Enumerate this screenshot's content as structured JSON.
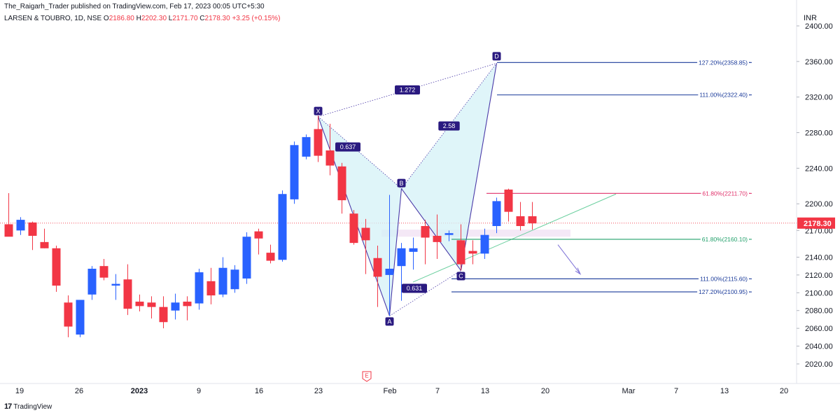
{
  "header": {
    "publisher": "The_Raigarh_Trader published on TradingView.com, Feb 17, 2023 00:05 UTC+5:30",
    "symbol": "LARSEN & TOUBRO, 1D, NSE",
    "open_label": "O",
    "open": "2186.80",
    "high_label": "H",
    "high": "2202.30",
    "low_label": "L",
    "low": "2171.70",
    "close_label": "C",
    "close": "2178.30",
    "change": "+3.25 (+0.15%)",
    "currency": "INR"
  },
  "footer": {
    "brand": "TradingView",
    "logo_icon": "tradingview-logo-icon"
  },
  "colors": {
    "up": "#2962ff",
    "down": "#f23645",
    "pattern_fill": "#d4f2f7",
    "pattern_line": "#4a3aa8",
    "point_badge": "#2a1a80",
    "fib_blue": "#1a3a9a",
    "fib_red": "#e0306a",
    "fib_green": "#22a06b",
    "price_tag": "#f23645"
  },
  "chart_data": {
    "type": "candlestick",
    "symbol": "LARSEN & TOUBRO",
    "timeframe": "1D",
    "exchange": "NSE",
    "currency": "INR",
    "ylim": [
      2010,
      2400
    ],
    "y_ticks": [
      "2400.00",
      "2360.00",
      "2320.00",
      "2280.00",
      "2240.00",
      "2200.00",
      "2170.00",
      "2140.00",
      "2120.00",
      "2100.00",
      "2080.00",
      "2060.00",
      "2040.00",
      "2020.00"
    ],
    "x_ticks": [
      "19",
      "26",
      "2023",
      "9",
      "16",
      "23",
      "Feb",
      "7",
      "13",
      "20",
      "Mar",
      "7",
      "13",
      "20"
    ],
    "last_price": "2178.30",
    "candles": [
      {
        "d": "2022-12-16",
        "o": 2177,
        "h": 2212,
        "l": 2164,
        "c": 2163
      },
      {
        "d": "2022-12-19",
        "o": 2170,
        "h": 2185,
        "l": 2165,
        "c": 2182
      },
      {
        "d": "2022-12-20",
        "o": 2179,
        "h": 2180,
        "l": 2148,
        "c": 2164
      },
      {
        "d": "2022-12-21",
        "o": 2157,
        "h": 2172,
        "l": 2150,
        "c": 2150
      },
      {
        "d": "2022-12-22",
        "o": 2150,
        "h": 2153,
        "l": 2101,
        "c": 2108
      },
      {
        "d": "2022-12-23",
        "o": 2089,
        "h": 2097,
        "l": 2050,
        "c": 2062
      },
      {
        "d": "2022-12-26",
        "o": 2053,
        "h": 2092,
        "l": 2050,
        "c": 2092
      },
      {
        "d": "2022-12-27",
        "o": 2098,
        "h": 2130,
        "l": 2092,
        "c": 2127
      },
      {
        "d": "2022-12-28",
        "o": 2130,
        "h": 2138,
        "l": 2114,
        "c": 2117
      },
      {
        "d": "2022-12-29",
        "o": 2108,
        "h": 2121,
        "l": 2092,
        "c": 2110
      },
      {
        "d": "2022-12-30",
        "o": 2115,
        "h": 2132,
        "l": 2075,
        "c": 2082
      },
      {
        "d": "2023-01-02",
        "o": 2090,
        "h": 2098,
        "l": 2079,
        "c": 2085
      },
      {
        "d": "2023-01-03",
        "o": 2089,
        "h": 2096,
        "l": 2071,
        "c": 2084
      },
      {
        "d": "2023-01-04",
        "o": 2084,
        "h": 2096,
        "l": 2060,
        "c": 2067
      },
      {
        "d": "2023-01-05",
        "o": 2080,
        "h": 2099,
        "l": 2070,
        "c": 2089
      },
      {
        "d": "2023-01-06",
        "o": 2090,
        "h": 2096,
        "l": 2069,
        "c": 2085
      },
      {
        "d": "2023-01-09",
        "o": 2088,
        "h": 2127,
        "l": 2081,
        "c": 2123
      },
      {
        "d": "2023-01-10",
        "o": 2113,
        "h": 2128,
        "l": 2087,
        "c": 2097
      },
      {
        "d": "2023-01-11",
        "o": 2098,
        "h": 2140,
        "l": 2095,
        "c": 2128
      },
      {
        "d": "2023-01-12",
        "o": 2104,
        "h": 2131,
        "l": 2100,
        "c": 2126
      },
      {
        "d": "2023-01-13",
        "o": 2116,
        "h": 2168,
        "l": 2110,
        "c": 2163
      },
      {
        "d": "2023-01-16",
        "o": 2169,
        "h": 2172,
        "l": 2143,
        "c": 2161
      },
      {
        "d": "2023-01-17",
        "o": 2145,
        "h": 2154,
        "l": 2133,
        "c": 2136
      },
      {
        "d": "2023-01-18",
        "o": 2137,
        "h": 2215,
        "l": 2135,
        "c": 2211
      },
      {
        "d": "2023-01-19",
        "o": 2205,
        "h": 2270,
        "l": 2200,
        "c": 2266
      },
      {
        "d": "2023-01-20",
        "o": 2253,
        "h": 2278,
        "l": 2250,
        "c": 2275
      },
      {
        "d": "2023-01-23",
        "o": 2284,
        "h": 2299,
        "l": 2247,
        "c": 2254
      },
      {
        "d": "2023-01-24",
        "o": 2260,
        "h": 2290,
        "l": 2232,
        "c": 2243
      },
      {
        "d": "2023-01-25",
        "o": 2242,
        "h": 2246,
        "l": 2189,
        "c": 2204
      },
      {
        "d": "2023-01-27",
        "o": 2189,
        "h": 2193,
        "l": 2154,
        "c": 2156
      },
      {
        "d": "2023-01-30",
        "o": 2173,
        "h": 2183,
        "l": 2121,
        "c": 2159
      },
      {
        "d": "2023-01-31",
        "o": 2139,
        "h": 2153,
        "l": 2084,
        "c": 2118
      },
      {
        "d": "2023-02-01",
        "o": 2120,
        "h": 2210,
        "l": 2074,
        "c": 2127
      },
      {
        "d": "2023-02-02",
        "o": 2130,
        "h": 2156,
        "l": 2091,
        "c": 2150
      },
      {
        "d": "2023-02-03",
        "o": 2146,
        "h": 2162,
        "l": 2126,
        "c": 2150
      },
      {
        "d": "2023-02-06",
        "o": 2175,
        "h": 2182,
        "l": 2132,
        "c": 2162
      },
      {
        "d": "2023-02-07",
        "o": 2164,
        "h": 2188,
        "l": 2138,
        "c": 2157
      },
      {
        "d": "2023-02-08",
        "o": 2165,
        "h": 2170,
        "l": 2158,
        "c": 2167
      },
      {
        "d": "2023-02-09",
        "o": 2159,
        "h": 2177,
        "l": 2125,
        "c": 2132
      },
      {
        "d": "2023-02-10",
        "o": 2147,
        "h": 2159,
        "l": 2132,
        "c": 2144
      },
      {
        "d": "2023-02-13",
        "o": 2144,
        "h": 2172,
        "l": 2138,
        "c": 2165
      },
      {
        "d": "2023-02-14",
        "o": 2175,
        "h": 2207,
        "l": 2167,
        "c": 2203
      },
      {
        "d": "2023-02-15",
        "o": 2216,
        "h": 2217,
        "l": 2180,
        "c": 2191
      },
      {
        "d": "2023-02-16",
        "o": 2186,
        "h": 2202,
        "l": 2170,
        "c": 2175
      },
      {
        "d": "2023-02-17",
        "o": 2186,
        "h": 2202,
        "l": 2171,
        "c": 2178
      }
    ],
    "pattern": {
      "points": [
        {
          "label": "X",
          "price": 2298,
          "date": "2023-01-23"
        },
        {
          "label": "A",
          "price": 2074,
          "date": "2023-02-01"
        },
        {
          "label": "B",
          "price": 2217,
          "date": "2023-02-02"
        },
        {
          "label": "C",
          "price": 2125,
          "date": "2023-02-09"
        },
        {
          "label": "D",
          "price": 2358,
          "date": "2023-02-14"
        }
      ],
      "ratios": [
        {
          "text": "0.637",
          "from": "X",
          "to": "B"
        },
        {
          "text": "0.631",
          "from": "A",
          "to": "C"
        },
        {
          "text": "2.58",
          "from": "B",
          "to": "D"
        },
        {
          "text": "1.272",
          "from": "X",
          "to": "D"
        }
      ]
    },
    "fib_levels": [
      {
        "label": "127.20%(2358.85)",
        "price": 2358.85,
        "color": "blue"
      },
      {
        "label": "111.00%(2322.40)",
        "price": 2322.4,
        "color": "blue"
      },
      {
        "label": "61.80%(2211.70)",
        "price": 2211.7,
        "color": "red"
      },
      {
        "label": "61.80%(2160.10)",
        "price": 2160.1,
        "color": "green"
      },
      {
        "label": "111.00%(2115.60)",
        "price": 2115.6,
        "color": "blue"
      },
      {
        "label": "127.20%(2100.95)",
        "price": 2100.95,
        "color": "blue"
      }
    ],
    "earnings_marker": "E"
  }
}
